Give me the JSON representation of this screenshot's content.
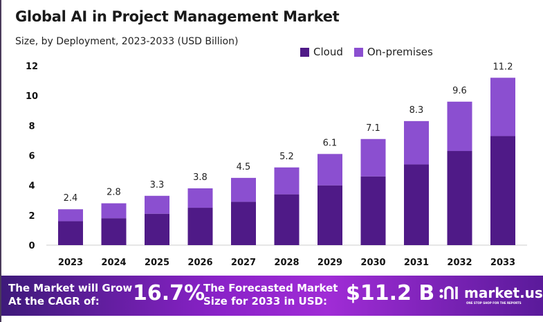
{
  "chart_data": {
    "type": "bar",
    "stacked": true,
    "title": "Global AI in Project Management Market",
    "subtitle": "Size, by Deployment, 2023-2033 (USD Billion)",
    "categories": [
      "2023",
      "2024",
      "2025",
      "2026",
      "2027",
      "2028",
      "2029",
      "2030",
      "2031",
      "2032",
      "2033"
    ],
    "series": [
      {
        "name": "Cloud",
        "color": "#4f1a87",
        "values": [
          1.6,
          1.8,
          2.1,
          2.5,
          2.9,
          3.4,
          4.0,
          4.6,
          5.4,
          6.3,
          7.3
        ]
      },
      {
        "name": "On-premises",
        "color": "#8b4fd0",
        "values": [
          0.8,
          1.0,
          1.2,
          1.3,
          1.6,
          1.8,
          2.1,
          2.5,
          2.9,
          3.3,
          3.9
        ]
      }
    ],
    "totals": [
      "2.4",
      "2.8",
      "3.3",
      "3.8",
      "4.5",
      "5.2",
      "6.1",
      "7.1",
      "8.3",
      "9.6",
      "11.2"
    ],
    "ylim": [
      0,
      12
    ],
    "yticks": [
      "0",
      "2",
      "4",
      "6",
      "8",
      "10",
      "12"
    ],
    "grid": false,
    "legend": "top-right"
  },
  "footer": {
    "cagr_text_1": "The Market will Grow",
    "cagr_text_2": "At the CAGR of:",
    "cagr_value": "16.7%",
    "forecast_text_1": "The Forecasted Market",
    "forecast_text_2": "Size for 2033 in USD:",
    "forecast_value": "$11.2 B",
    "logo": "market.us",
    "logo_tagline": "ONE STOP SHOP FOR THE REPORTS"
  }
}
